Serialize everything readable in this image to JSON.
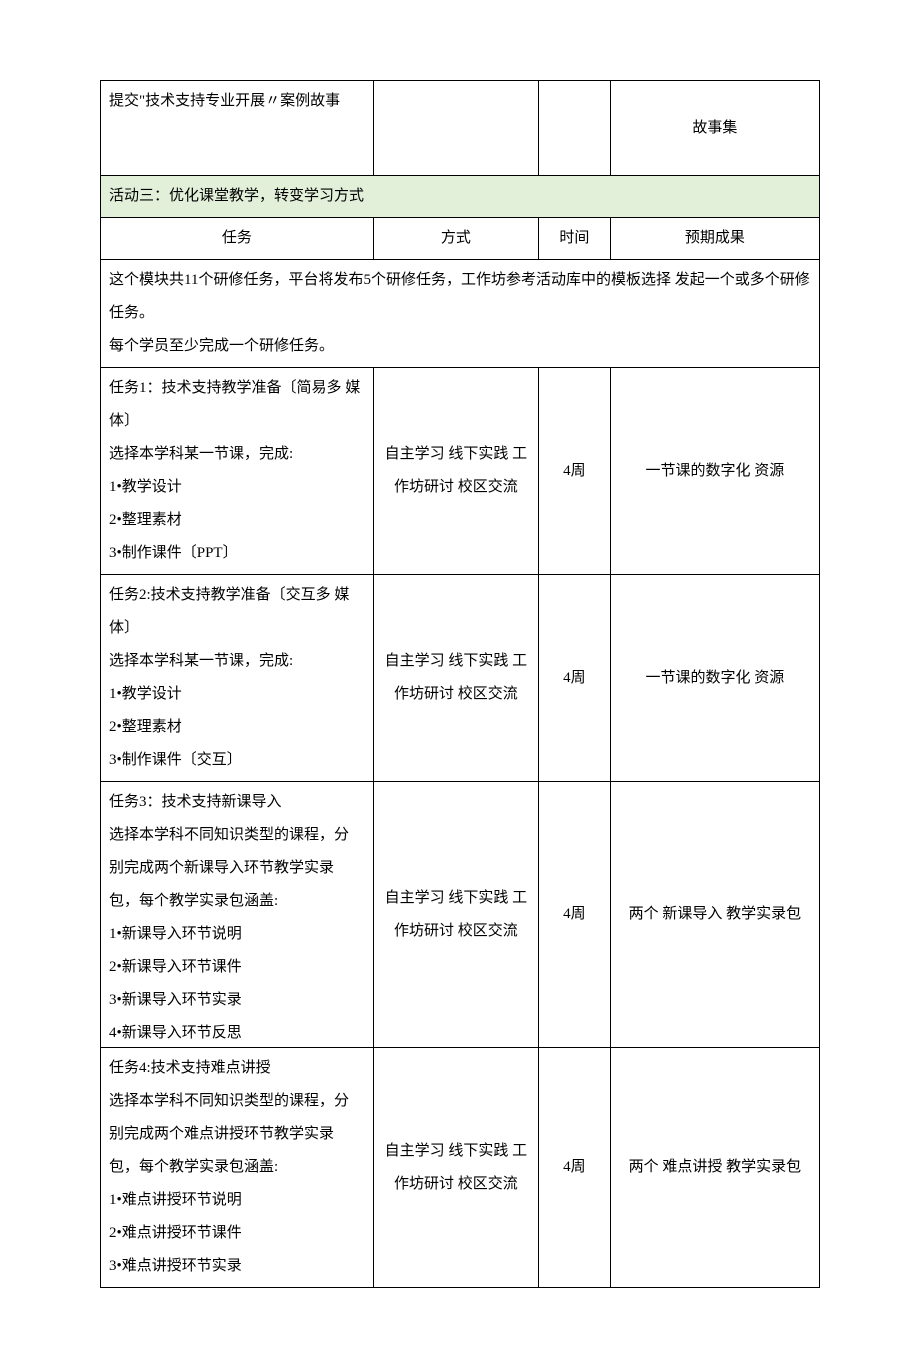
{
  "top_row": {
    "task_text": "提交\"技术支持专业开展〃案例故事",
    "outcome": "故事集"
  },
  "activity_header": "活动三：优化课堂教学，转变学习方式",
  "column_headers": {
    "task": "任务",
    "method": "方式",
    "time": "时间",
    "outcome": "预期成果"
  },
  "intro": {
    "line1": "这个模块共11个研修任务，平台将发布5个研修任务，工作坊参考活动库中的模板选择 发起一个或多个研修任务。",
    "line2": "每个学员至少完成一个研修任务。"
  },
  "tasks": [
    {
      "title": "任务1：技术支持教学准备〔简易多 媒体〕",
      "desc": "选择本学科某一节课，完成:",
      "items": [
        "1•教学设计",
        "2•整理素材",
        "3•制作课件〔PPT〕"
      ],
      "method": "自主学习 线下实践 工作坊研讨 校区交流",
      "time": "4周",
      "outcome": "一节课的数字化 资源"
    },
    {
      "title": "任务2:技术支持教学准备〔交互多 媒体〕",
      "desc": "选择本学科某一节课，完成:",
      "items": [
        "1•教学设计",
        "2•整理素材",
        "3•制作课件〔交互〕"
      ],
      "method": "自主学习 线下实践 工作坊研讨 校区交流",
      "time": "4周",
      "outcome": "一节课的数字化 资源"
    },
    {
      "title": "任务3：技术支持新课导入",
      "desc": "选择本学科不同知识类型的课程，分 别完成两个新课导入环节教学实录 包，每个教学实录包涵盖:",
      "items": [
        "1•新课导入环节说明",
        "2•新课导入环节课件",
        "3•新课导入环节实录",
        "4•新课导入环节反思"
      ],
      "method": "自主学习 线下实践 工作坊研讨 校区交流",
      "time": "4周",
      "outcome": "两个 新课导入 教学实录包"
    },
    {
      "title": "任务4:技术支持难点讲授",
      "desc": "选择本学科不同知识类型的课程，分 别完成两个难点讲授环节教学实录 包，每个教学实录包涵盖:",
      "items": [
        "1•难点讲授环节说明",
        "2•难点讲授环节课件",
        "3•难点讲授环节实录"
      ],
      "method": "自主学习 线下实践 工作坊研讨 校区交流",
      "time": "4周",
      "outcome": "两个 难点讲授 教学实录包"
    }
  ],
  "colors": {
    "activity_bg": "#e2efd9",
    "border": "#000000",
    "text": "#000000",
    "background": "#ffffff"
  }
}
